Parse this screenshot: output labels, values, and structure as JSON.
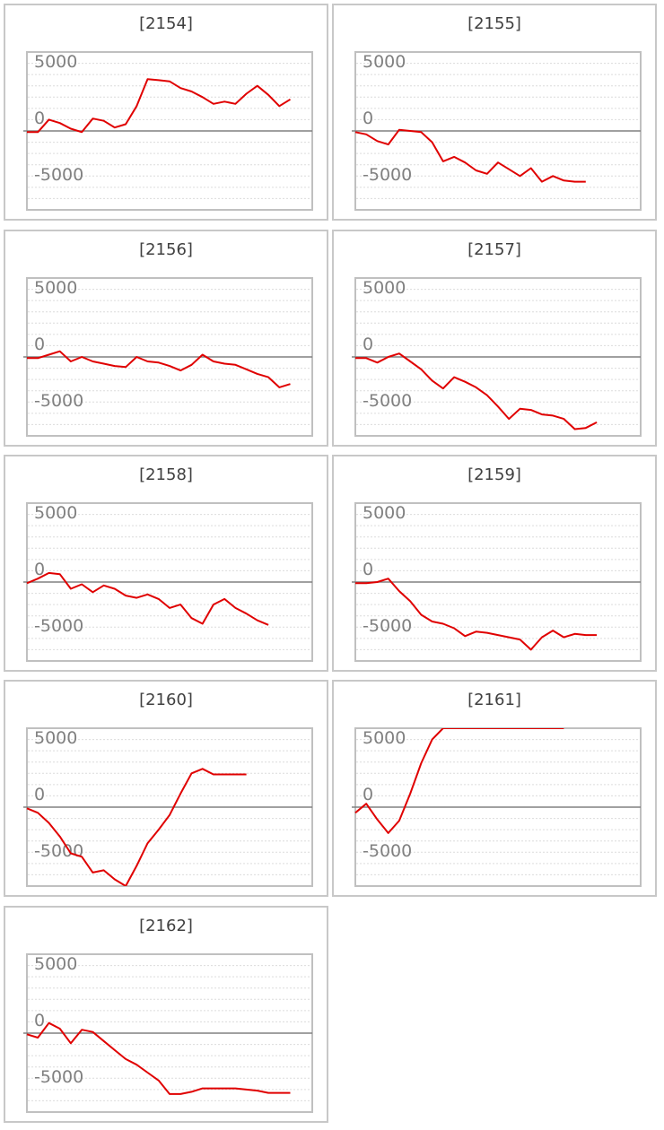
{
  "chart_data": [
    {
      "id": "2154",
      "title": "[2154]",
      "type": "line",
      "ylim": [
        -7000,
        7000
      ],
      "yticks": [
        5000,
        0,
        -5000
      ],
      "color": "#e00000",
      "x": [
        0,
        1,
        2,
        3,
        4,
        5,
        6,
        7,
        8,
        9,
        10,
        11,
        12,
        13,
        14,
        15,
        16,
        17,
        18,
        19,
        20,
        21,
        22,
        23,
        24
      ],
      "y": [
        -100,
        -100,
        1000,
        700,
        200,
        -100,
        1100,
        900,
        300,
        600,
        2200,
        4600,
        4500,
        4400,
        3800,
        3500,
        3000,
        2400,
        2600,
        2400,
        3300,
        4000,
        3200,
        2200,
        2800
      ]
    },
    {
      "id": "2155",
      "title": "[2155]",
      "type": "line",
      "ylim": [
        -7000,
        7000
      ],
      "yticks": [
        5000,
        0,
        -5000
      ],
      "color": "#e00000",
      "x": [
        0,
        1,
        2,
        3,
        4,
        5,
        6,
        7,
        8,
        9,
        10,
        11,
        12,
        13,
        14,
        15,
        16,
        17,
        18,
        19,
        20,
        21
      ],
      "y": [
        -100,
        -300,
        -900,
        -1200,
        100,
        0,
        -100,
        -1000,
        -2700,
        -2300,
        -2800,
        -3500,
        -3800,
        -2800,
        -3400,
        -4000,
        -3300,
        -4500,
        -4000,
        -4400,
        -4500,
        -4500
      ]
    },
    {
      "id": "2156",
      "title": "[2156]",
      "type": "line",
      "ylim": [
        -7000,
        7000
      ],
      "yticks": [
        5000,
        0,
        -5000
      ],
      "color": "#e00000",
      "x": [
        0,
        1,
        2,
        3,
        4,
        5,
        6,
        7,
        8,
        9,
        10,
        11,
        12,
        13,
        14,
        15,
        16,
        17,
        18,
        19,
        20,
        21,
        22,
        23,
        24
      ],
      "y": [
        -100,
        -100,
        200,
        500,
        -400,
        0,
        -400,
        -600,
        -800,
        -900,
        0,
        -400,
        -500,
        -800,
        -1200,
        -700,
        200,
        -400,
        -600,
        -700,
        -1100,
        -1500,
        -1800,
        -2700,
        -2400
      ]
    },
    {
      "id": "2157",
      "title": "[2157]",
      "type": "line",
      "ylim": [
        -7000,
        7000
      ],
      "yticks": [
        5000,
        0,
        -5000
      ],
      "color": "#e00000",
      "x": [
        0,
        1,
        2,
        3,
        4,
        5,
        6,
        7,
        8,
        9,
        10,
        11,
        12,
        13,
        14,
        15,
        16,
        17,
        18,
        19,
        20,
        21,
        22
      ],
      "y": [
        -100,
        -100,
        -500,
        0,
        300,
        -400,
        -1100,
        -2100,
        -2800,
        -1800,
        -2200,
        -2700,
        -3400,
        -4400,
        -5500,
        -4600,
        -4700,
        -5100,
        -5200,
        -5500,
        -6400,
        -6300,
        -5800
      ]
    },
    {
      "id": "2158",
      "title": "[2158]",
      "type": "line",
      "ylim": [
        -7000,
        7000
      ],
      "yticks": [
        5000,
        0,
        -5000
      ],
      "color": "#e00000",
      "x": [
        0,
        1,
        2,
        3,
        4,
        5,
        6,
        7,
        8,
        9,
        10,
        11,
        12,
        13,
        14,
        15,
        16,
        17,
        18,
        19,
        20,
        21,
        22
      ],
      "y": [
        -100,
        300,
        800,
        700,
        -600,
        -200,
        -900,
        -300,
        -600,
        -1200,
        -1400,
        -1100,
        -1500,
        -2300,
        -2000,
        -3200,
        -3700,
        -2000,
        -1500,
        -2300,
        -2800,
        -3400,
        -3800
      ]
    },
    {
      "id": "2159",
      "title": "[2159]",
      "type": "line",
      "ylim": [
        -7000,
        7000
      ],
      "yticks": [
        5000,
        0,
        -5000
      ],
      "color": "#e00000",
      "x": [
        0,
        1,
        2,
        3,
        4,
        5,
        6,
        7,
        8,
        9,
        10,
        11,
        12,
        13,
        14,
        15,
        16,
        17,
        18,
        19,
        20,
        21,
        22
      ],
      "y": [
        -100,
        -100,
        0,
        300,
        -800,
        -1700,
        -2900,
        -3500,
        -3700,
        -4100,
        -4800,
        -4400,
        -4500,
        -4700,
        -4900,
        -5100,
        -6000,
        -4900,
        -4300,
        -4900,
        -4600,
        -4700,
        -4700
      ]
    },
    {
      "id": "2160",
      "title": "[2160]",
      "type": "line",
      "ylim": [
        -7000,
        7000
      ],
      "yticks": [
        5000,
        0,
        -5000
      ],
      "color": "#e00000",
      "x": [
        0,
        1,
        2,
        3,
        4,
        5,
        6,
        7,
        8,
        9,
        10,
        11,
        12,
        13,
        14,
        15,
        16,
        17,
        18,
        19,
        20
      ],
      "y": [
        -100,
        -500,
        -1400,
        -2600,
        -4100,
        -4400,
        -5800,
        -5600,
        -6400,
        -7000,
        -5200,
        -3200,
        -2000,
        -700,
        1200,
        3000,
        3400,
        2900,
        2900,
        2900,
        2900
      ]
    },
    {
      "id": "2161",
      "title": "[2161]",
      "type": "line",
      "ylim": [
        -7000,
        7000
      ],
      "yticks": [
        5000,
        0,
        -5000
      ],
      "color": "#e00000",
      "x": [
        0,
        1,
        2,
        3,
        4,
        5,
        6,
        7,
        8,
        9,
        10,
        11,
        12,
        13,
        14,
        15,
        16,
        17,
        18,
        19
      ],
      "y": [
        -500,
        300,
        -1100,
        -2300,
        -1200,
        1200,
        3900,
        6000,
        7000,
        7000,
        7000,
        7000,
        7000,
        7000,
        7000,
        7000,
        7000,
        7000,
        7000,
        7000
      ]
    },
    {
      "id": "2162",
      "title": "[2162]",
      "type": "line",
      "ylim": [
        -7000,
        7000
      ],
      "yticks": [
        5000,
        0,
        -5000
      ],
      "color": "#e00000",
      "x": [
        0,
        1,
        2,
        3,
        4,
        5,
        6,
        7,
        8,
        9,
        10,
        11,
        12,
        13,
        14,
        15,
        16,
        17,
        18,
        19,
        20,
        21,
        22,
        23,
        24
      ],
      "y": [
        -100,
        -400,
        900,
        400,
        -900,
        300,
        100,
        -700,
        -1500,
        -2300,
        -2800,
        -3500,
        -4200,
        -5400,
        -5400,
        -5200,
        -4900,
        -4900,
        -4900,
        -4900,
        -5000,
        -5100,
        -5300,
        -5300,
        -5300
      ]
    }
  ]
}
